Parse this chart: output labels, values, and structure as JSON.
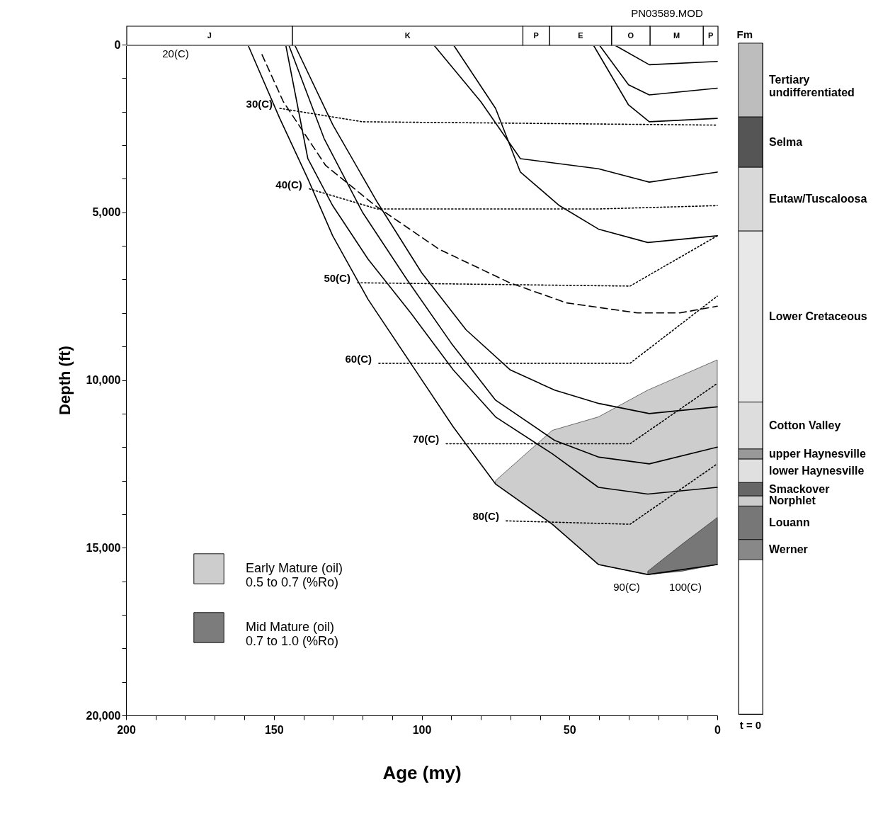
{
  "chart_data": [
    {
      "type": "line",
      "xlabel": "Age (my)",
      "ylabel": "Depth (ft)",
      "xlim": [
        200,
        0
      ],
      "ylim": [
        20000,
        0
      ],
      "xticks": [
        200,
        {
          "value": 190,
          "label": null
        },
        {
          "value": 180,
          "label": null
        },
        {
          "value": 170,
          "label": null
        },
        {
          "value": 160,
          "label": null
        },
        150,
        {
          "value": 140,
          "label": null
        },
        {
          "value": 130,
          "label": null
        },
        {
          "value": 120,
          "label": null
        },
        {
          "value": 110,
          "label": null
        },
        100,
        {
          "value": 90,
          "label": null
        },
        {
          "value": 80,
          "label": null
        },
        {
          "value": 70,
          "label": null
        },
        {
          "value": 60,
          "label": null
        },
        50,
        {
          "value": 40,
          "label": null
        },
        {
          "value": 30,
          "label": null
        },
        {
          "value": 20,
          "label": null
        },
        {
          "value": 10,
          "label": null
        },
        0
      ],
      "yticks": [
        0,
        {
          "value": 1000,
          "label": null
        },
        {
          "value": 2000,
          "label": null
        },
        {
          "value": 3000,
          "label": null
        },
        {
          "value": 4000,
          "label": null
        },
        {
          "value": 5000,
          "label": "5,000"
        },
        {
          "value": 6000,
          "label": null
        },
        {
          "value": 7000,
          "label": null
        },
        {
          "value": 8000,
          "label": null
        },
        {
          "value": 9000,
          "label": null
        },
        {
          "value": 10000,
          "label": "10,000"
        },
        {
          "value": 11000,
          "label": null
        },
        {
          "value": 12000,
          "label": null
        },
        {
          "value": 13000,
          "label": null
        },
        {
          "value": 14000,
          "label": null
        },
        {
          "value": 15000,
          "label": "15,000"
        },
        {
          "value": 16000,
          "label": null
        },
        {
          "value": 17000,
          "label": null
        },
        {
          "value": 18000,
          "label": null
        },
        {
          "value": 19000,
          "label": null
        },
        {
          "value": 20000,
          "label": "20,000"
        }
      ],
      "grid": false,
      "legend": "bottom left",
      "annotations": [
        "PN03589.MOD",
        "20(C)",
        "90(C)",
        "100(C)"
      ],
      "series": [
        {
          "name": "Early Mature (oil) 0.5 to 0.7 (%Ro)",
          "type": "area",
          "color": "#c8c8c8",
          "x": [
            75,
            55.8,
            40.2,
            23.5,
            0,
            0,
            23.5,
            40.2,
            55.8,
            75
          ],
          "values": [
            13000,
            11500,
            11100,
            10300,
            9400,
            15500,
            15800,
            15500,
            14300,
            13100
          ]
        },
        {
          "name": "Mid Mature (oil) 0.7 to 1.0 (%Ro)",
          "type": "area",
          "color": "#6e6e6e",
          "x": [
            23.5,
            12,
            0,
            0,
            12,
            23.5
          ],
          "values": [
            15700,
            14900,
            14100,
            15500,
            15700,
            15800
          ]
        },
        {
          "color": "#000000",
          "line_style": "solid",
          "x": [
            158.8,
            148,
            138.5,
            130.1,
            118.1,
            103.7,
            89.3,
            75,
            55.8,
            40.2,
            23.5,
            0
          ],
          "values": [
            0,
            2200,
            4000,
            5700,
            7600,
            9500,
            11400,
            13100,
            14300,
            15500,
            15800,
            15500
          ]
        },
        {
          "color": "#000000",
          "line_style": "solid",
          "x": [
            146,
            138.5,
            130.1,
            118.1,
            103.7,
            89.3,
            75,
            55.8,
            40.2,
            23.5,
            0
          ],
          "values": [
            0,
            3400,
            4800,
            6400,
            8000,
            9700,
            11100,
            12200,
            13200,
            13400,
            13200
          ]
        },
        {
          "color": "#000000",
          "line_style": "solid",
          "x": [
            145,
            133,
            120,
            105,
            90,
            75,
            55,
            40,
            23,
            0
          ],
          "values": [
            0,
            2800,
            5000,
            7000,
            8900,
            10600,
            11800,
            12300,
            12500,
            12000
          ]
        },
        {
          "color": "#000000",
          "line_style": "solid",
          "x": [
            143,
            130,
            115,
            100,
            85,
            70,
            55,
            40,
            23,
            0
          ],
          "values": [
            0,
            2400,
            4700,
            6800,
            8500,
            9700,
            10300,
            10700,
            11000,
            10800
          ]
        },
        {
          "color": "#000000",
          "line_style": "solid",
          "x": [
            89.3,
            75,
            66.6,
            53.4,
            40.2,
            23.5,
            0
          ],
          "values": [
            0,
            1900,
            3800,
            4800,
            5500,
            5900,
            5700
          ]
        },
        {
          "color": "#000000",
          "line_style": "solid",
          "x": [
            96,
            80,
            66.6,
            40.2,
            23,
            0
          ],
          "values": [
            0,
            1700,
            3400,
            3700,
            4100,
            3800
          ]
        },
        {
          "color": "#000000",
          "line_style": "solid",
          "x": [
            42,
            30,
            23,
            0
          ],
          "values": [
            0,
            1800,
            2300,
            2200
          ]
        },
        {
          "color": "#000000",
          "line_style": "solid",
          "x": [
            40,
            30,
            23,
            0
          ],
          "values": [
            0,
            1200,
            1500,
            1300
          ]
        },
        {
          "color": "#000000",
          "line_style": "solid",
          "x": [
            35,
            23,
            0
          ],
          "values": [
            0,
            600,
            500
          ]
        },
        {
          "color": "#000000",
          "line_style": "dashed",
          "x": [
            154,
            146.8,
            132.5,
            115.7,
            94.1,
            70.2,
            51,
            27,
            12.7,
            0
          ],
          "values": [
            300,
            1700,
            3600,
            4800,
            6100,
            7100,
            7700,
            8000,
            8000,
            7800
          ]
        },
        {
          "name": "30(C)",
          "color": "#000000",
          "line_style": "dotted",
          "x": [
            148,
            120,
            0
          ],
          "values": [
            1900,
            2300,
            2400
          ]
        },
        {
          "name": "40(C)",
          "color": "#000000",
          "line_style": "dotted",
          "x": [
            138,
            115,
            40,
            0
          ],
          "values": [
            4300,
            4900,
            4900,
            4800
          ]
        },
        {
          "name": "50(C)",
          "color": "#000000",
          "line_style": "dotted",
          "x": [
            121.7,
            29.5,
            0
          ],
          "values": [
            7100,
            7200,
            5700
          ]
        },
        {
          "name": "60(C)",
          "color": "#000000",
          "line_style": "dotted",
          "x": [
            114.5,
            29.5,
            0
          ],
          "values": [
            9500,
            9500,
            7500
          ]
        },
        {
          "name": "70(C)",
          "color": "#000000",
          "line_style": "dotted",
          "x": [
            91.7,
            29.5,
            0
          ],
          "values": [
            11900,
            11900,
            10100
          ]
        },
        {
          "name": "80(C)",
          "color": "#000000",
          "line_style": "dotted",
          "x": [
            71.4,
            29.5,
            0
          ],
          "values": [
            14200,
            14300,
            12500
          ]
        }
      ]
    },
    {
      "type": "bar",
      "orientation": "horizontal",
      "stacked": true,
      "categories": [
        null
      ],
      "xlim": [
        200,
        0
      ],
      "tick_labels": false,
      "legend": false,
      "series": [
        {
          "name": "P",
          "color": "#ffffff",
          "values": [
            5
          ]
        },
        {
          "name": "M",
          "color": "#ffffff",
          "values": [
            18
          ]
        },
        {
          "name": "O",
          "color": "#ffffff",
          "values": [
            13
          ]
        },
        {
          "name": "E",
          "color": "#ffffff",
          "values": [
            21
          ]
        },
        {
          "name": "P",
          "color": "#ffffff",
          "values": [
            9
          ]
        },
        {
          "name": "K",
          "color": "#ffffff",
          "values": [
            78
          ]
        },
        {
          "name": "J",
          "color": "#ffffff",
          "values": [
            56
          ]
        }
      ]
    },
    {
      "type": "bar",
      "stacked": true,
      "title": "Fm",
      "categories": [
        "t = 0"
      ],
      "ylim": [
        20000,
        0
      ],
      "tick_labels": "x",
      "legend": false,
      "series": [
        {
          "name": "Tertiary undifferentiated",
          "color": "#bdbdbd",
          "values": [
            2200
          ]
        },
        {
          "name": "Selma",
          "color": "#555555",
          "values": [
            1500
          ]
        },
        {
          "name": "Eutaw/Tuscaloosa",
          "color": "#d9d9d9",
          "values": [
            1900
          ]
        },
        {
          "name": "Lower Cretaceous",
          "color": "#e8e8e8",
          "values": [
            5100
          ]
        },
        {
          "name": "Cotton Valley",
          "color": "#dddddd",
          "values": [
            1400
          ]
        },
        {
          "name": "upper Haynesville",
          "color": "#999999",
          "values": [
            300
          ]
        },
        {
          "name": "lower Haynesville",
          "color": "#e0e0e0",
          "values": [
            700
          ]
        },
        {
          "name": "Smackover",
          "color": "#666666",
          "values": [
            400
          ]
        },
        {
          "name": "Norphlet",
          "color": "#cccccc",
          "values": [
            300
          ]
        },
        {
          "name": "Louann",
          "color": "#777777",
          "values": [
            1000
          ]
        },
        {
          "name": "Werner",
          "color": "#888888",
          "values": [
            600
          ]
        }
      ]
    }
  ]
}
